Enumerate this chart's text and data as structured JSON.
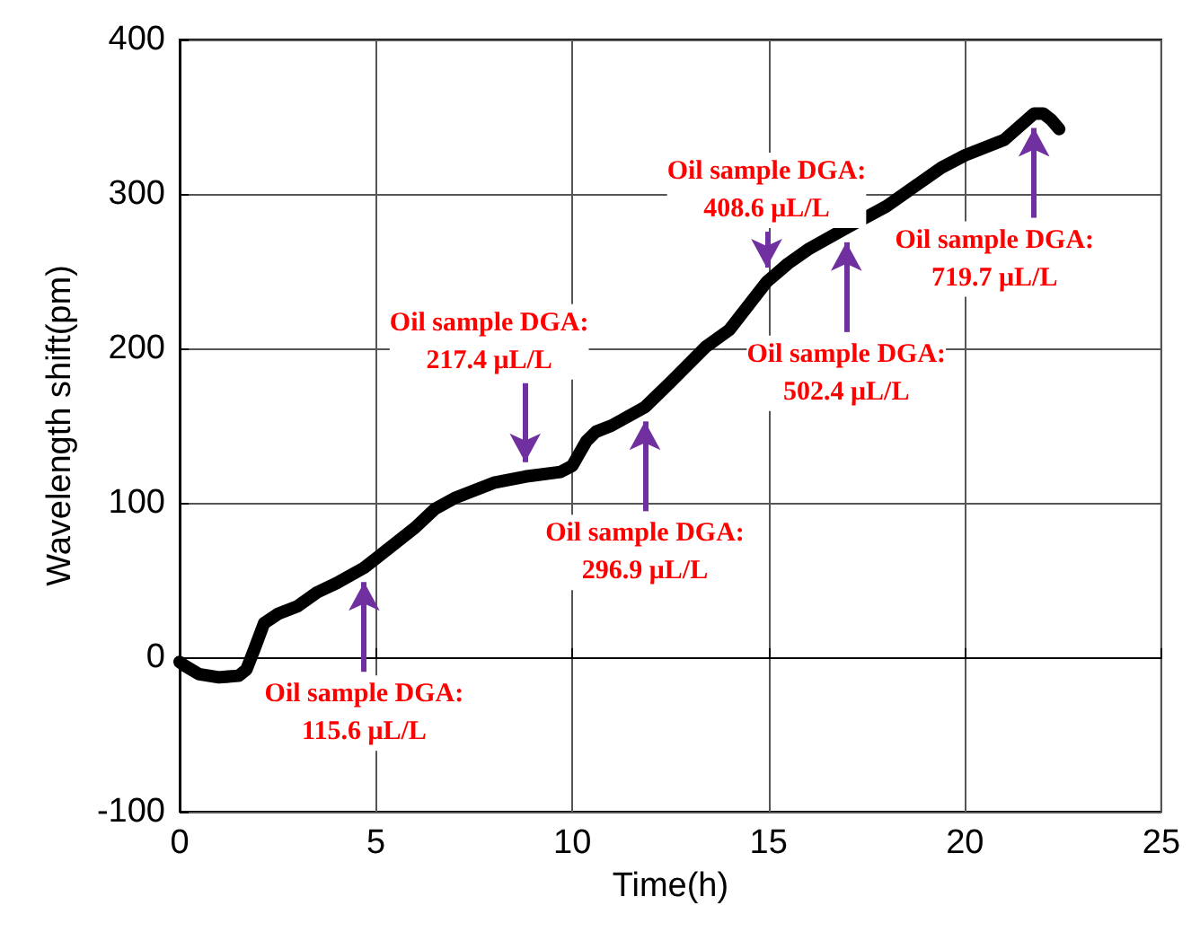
{
  "chart_data": {
    "type": "line",
    "xlabel": "Time(h)",
    "ylabel": "Wavelength shift(pm)",
    "x": [
      0,
      0.1,
      0.5,
      1,
      1.5,
      1.7,
      1.9,
      2.15,
      2.5,
      3,
      3.5,
      4,
      4.7,
      5,
      5.5,
      6,
      6.5,
      7,
      7.5,
      8,
      8.8,
      9.7,
      10,
      10.36,
      10.6,
      11,
      11.85,
      12.5,
      13.4,
      14,
      14.95,
      15.5,
      16,
      16.98,
      18,
      19.4,
      20,
      21,
      21.76,
      22,
      22.2,
      22.4
    ],
    "series": [
      {
        "color": "#000000",
        "values": [
          -3,
          -5,
          -11,
          -13,
          -12,
          -8,
          5,
          22,
          28,
          33,
          42,
          48,
          58,
          64,
          74,
          84,
          96,
          103,
          108,
          113,
          117,
          120,
          124,
          140,
          146,
          150,
          162,
          178,
          201,
          212,
          243,
          255,
          264,
          278,
          292,
          317,
          325,
          335,
          352,
          352,
          348,
          342
        ]
      }
    ],
    "xlim": [
      0,
      25
    ],
    "ylim": [
      -100,
      400
    ],
    "xticks": [
      0,
      5,
      10,
      15,
      20,
      25
    ],
    "yticks": [
      -100,
      0,
      100,
      200,
      300,
      400
    ],
    "grid": true,
    "annotations": [
      {
        "text": "Oil sample DGA:\n115.6 μL/L",
        "x": 4.7,
        "y": 58
      },
      {
        "text": "Oil sample DGA:\n217.4 μL/L",
        "x": 8.8,
        "y": 117
      },
      {
        "text": "Oil sample DGA:\n296.9 μL/L",
        "x": 11.85,
        "y": 162
      },
      {
        "text": "Oil sample DGA:\n408.6 μL/L",
        "x": 14.95,
        "y": 243
      },
      {
        "text": "Oil sample DGA:\n502.4 μL/L",
        "x": 16.98,
        "y": 278
      },
      {
        "text": "Oil sample DGA:\n719.7 μL/L",
        "x": 21.76,
        "y": 352
      }
    ]
  }
}
